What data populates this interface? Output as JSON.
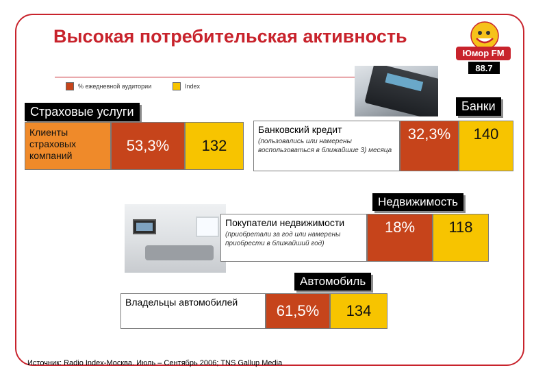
{
  "title": "Высокая потребительская активность",
  "logo": {
    "brand": "Юмор FM",
    "frequency": "88.7"
  },
  "legend": [
    {
      "label": "% ежедневной аудитории",
      "color": "#c6441b"
    },
    {
      "label": "Index",
      "color": "#f7c400"
    }
  ],
  "insurance": {
    "heading": "Страховые услуги",
    "label": "Клиенты страховых компаний",
    "percent": "53,3%",
    "index": "132"
  },
  "banks": {
    "heading": "Банки",
    "label": "Банковский кредит",
    "sublabel": "(пользовались или намерены воспользоваться в ближайшие 3) месяца",
    "percent": "32,3%",
    "index": "140"
  },
  "real_estate": {
    "heading": "Недвижимость",
    "label": "Покупатели недвижимости",
    "sublabel": "(приобретали за год или намерены приобрести в ближайший год)",
    "percent": "18%",
    "index": "118"
  },
  "auto": {
    "heading": "Автомобиль",
    "label": "Владельцы автомобилей",
    "percent": "61,5%",
    "index": "134"
  },
  "source": "Источник: Radio Index-Москва. Июль – Сентябрь 2006; TNS Gallup Media",
  "colors": {
    "accent": "#c8232c",
    "orange": "#ef8a2a",
    "red": "#c6441b",
    "yellow": "#f7c400"
  }
}
